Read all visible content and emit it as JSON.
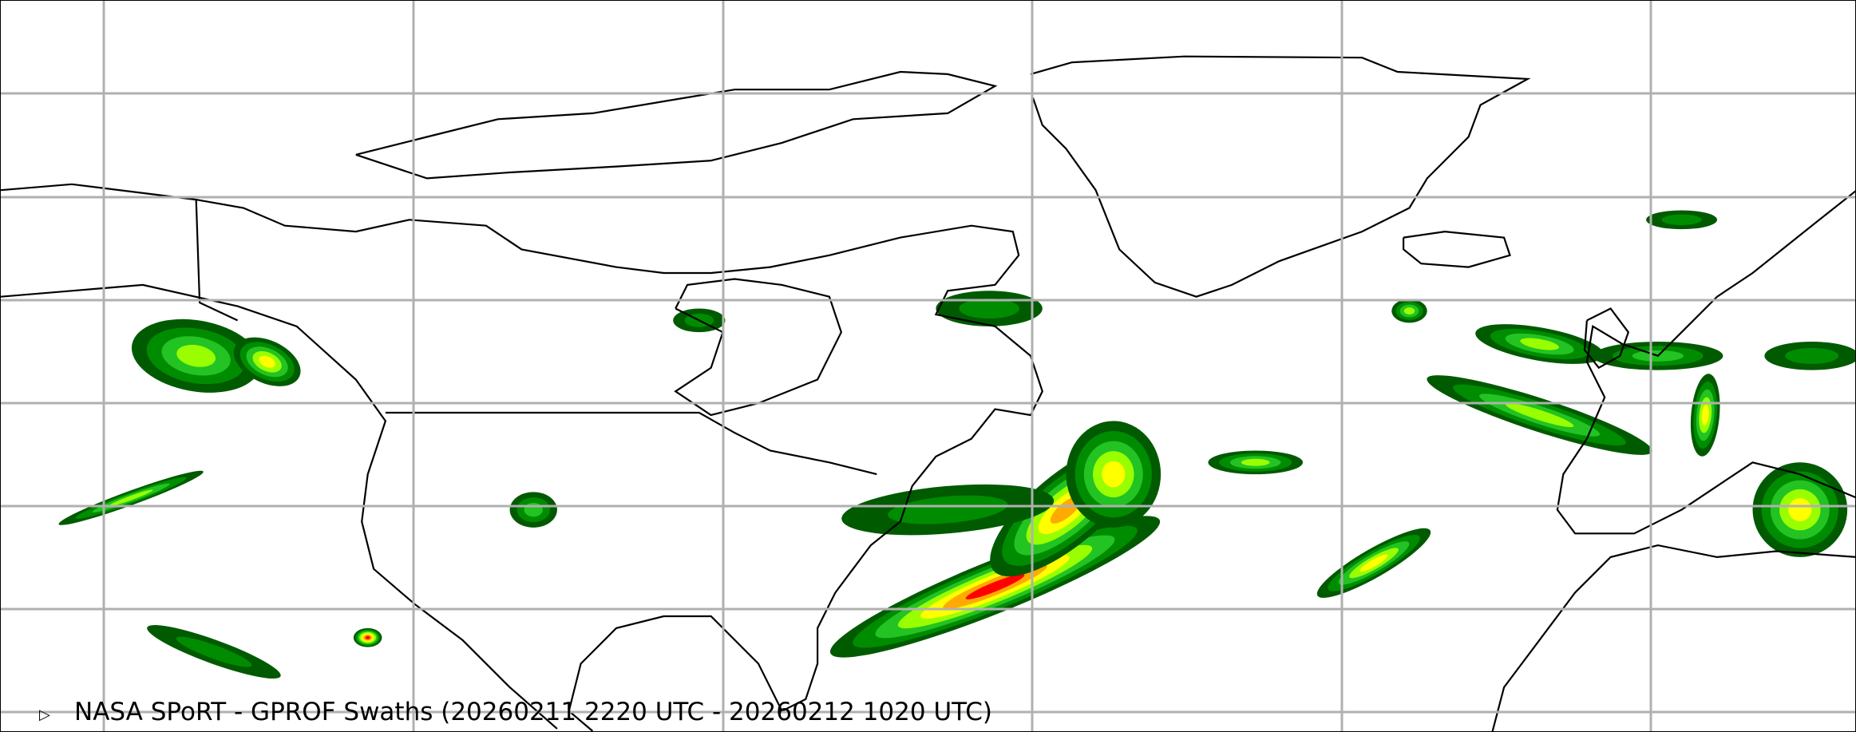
{
  "map": {
    "title": "NASA SPoRT - GPROF Swaths (20260211 2220 UTC - 20260212 1020 UTC)",
    "projection": "equirectangular",
    "region": "North America - North Atlantic - Europe",
    "gridlines": true,
    "colors": {
      "gridline": "#b0b0b0",
      "coastline": "#000000",
      "precip_levels": [
        "#005a00",
        "#008c00",
        "#22c322",
        "#99ff00",
        "#ffff00",
        "#ffaa00",
        "#ff0000"
      ]
    }
  }
}
